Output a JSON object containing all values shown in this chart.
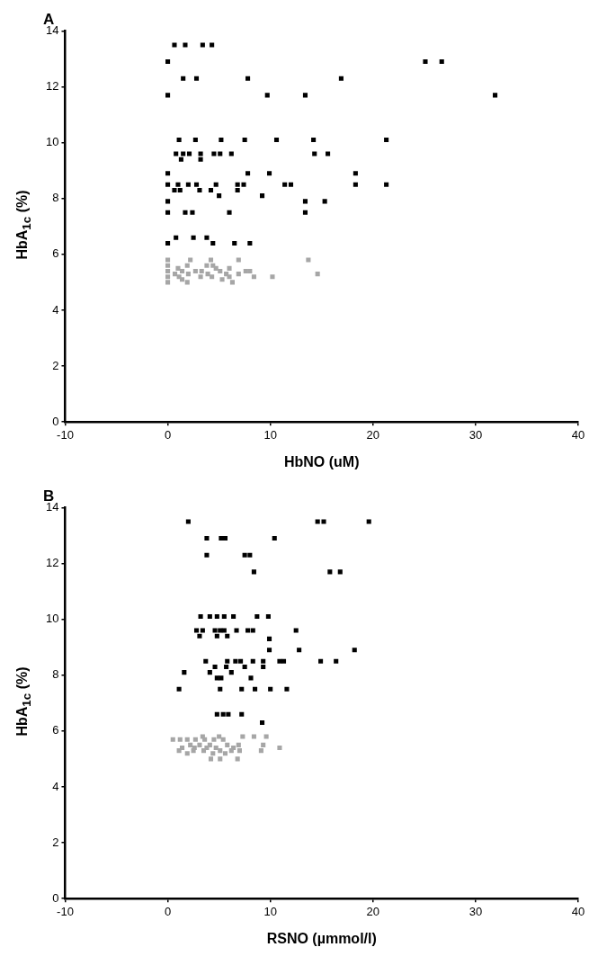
{
  "chart_data": [
    {
      "type": "scatter",
      "title": "A",
      "xlabel": "HbNO (uM)",
      "ylabel": "HbA$_{1c}$ (%)",
      "xlim": [
        -10,
        40
      ],
      "xticks": [
        -10,
        0,
        10,
        20,
        30,
        40
      ],
      "ylim": [
        0,
        14
      ],
      "yticks": [
        0,
        2,
        4,
        6,
        8,
        10,
        12,
        14
      ],
      "grid": false,
      "legend": false,
      "marker": "square",
      "series": [
        {
          "color": "#000000",
          "x": [
            0.65,
            1.7,
            3.4,
            4.3,
            0,
            25.1,
            26.7,
            1.5,
            2.8,
            7.8,
            16.9,
            0,
            9.7,
            13.4,
            31.9,
            1.1,
            2.7,
            5.2,
            7.5,
            10.6,
            14.2,
            21.3,
            0.8,
            1.5,
            2.1,
            3.2,
            4.5,
            5.1,
            6.2,
            14.3,
            15.6,
            1.3,
            3.2,
            0,
            7.8,
            9.9,
            18.3,
            0,
            1.0,
            2.0,
            2.8,
            4.7,
            6.8,
            7.4,
            11.4,
            12.0,
            18.3,
            21.3,
            0.65,
            1.2,
            3.1,
            4.2,
            6.8,
            5.0,
            9.2,
            0,
            13.4,
            15.3,
            0,
            1.7,
            2.4,
            6.0,
            13.4,
            0.8,
            2.5,
            3.8,
            0,
            4.4,
            6.5,
            8.0
          ],
          "values": [
            13.5,
            13.5,
            13.5,
            13.5,
            12.9,
            12.9,
            12.9,
            12.3,
            12.3,
            12.3,
            12.3,
            11.7,
            11.7,
            11.7,
            11.7,
            10.1,
            10.1,
            10.1,
            10.1,
            10.1,
            10.1,
            10.1,
            9.6,
            9.6,
            9.6,
            9.6,
            9.6,
            9.6,
            9.6,
            9.6,
            9.6,
            9.4,
            9.4,
            8.9,
            8.9,
            8.9,
            8.9,
            8.5,
            8.5,
            8.5,
            8.5,
            8.5,
            8.5,
            8.5,
            8.5,
            8.5,
            8.5,
            8.5,
            8.3,
            8.3,
            8.3,
            8.3,
            8.3,
            8.1,
            8.1,
            7.9,
            7.9,
            7.9,
            7.5,
            7.5,
            7.5,
            7.5,
            7.5,
            6.6,
            6.6,
            6.6,
            6.4,
            6.4,
            6.4,
            6.4
          ]
        },
        {
          "color": "#a6a6a6",
          "x": [
            0,
            2.2,
            4.2,
            6.9,
            13.7,
            0,
            1.9,
            3.8,
            4.4,
            1.0,
            4.7,
            6.0,
            0,
            1.4,
            2.7,
            3.3,
            5.1,
            7.6,
            8.0,
            0.7,
            2.0,
            3.9,
            5.7,
            6.9,
            14.6,
            0,
            1.1,
            3.2,
            4.3,
            6.0,
            8.4,
            10.2,
            1.4,
            5.3,
            0,
            1.9,
            6.3
          ],
          "values": [
            5.8,
            5.8,
            5.8,
            5.8,
            5.8,
            5.6,
            5.6,
            5.6,
            5.6,
            5.5,
            5.5,
            5.5,
            5.4,
            5.4,
            5.4,
            5.4,
            5.4,
            5.4,
            5.4,
            5.3,
            5.3,
            5.3,
            5.3,
            5.3,
            5.3,
            5.2,
            5.2,
            5.2,
            5.2,
            5.2,
            5.2,
            5.2,
            5.1,
            5.1,
            5.0,
            5.0,
            5.0
          ]
        }
      ]
    },
    {
      "type": "scatter",
      "title": "B",
      "xlabel": "RSNO (µmmol/l)",
      "ylabel": "HbA$_{1c}$ (%)",
      "xlim": [
        -10,
        40
      ],
      "xticks": [
        -10,
        0,
        10,
        20,
        30,
        40
      ],
      "ylim": [
        0,
        14
      ],
      "yticks": [
        0,
        2,
        4,
        6,
        8,
        10,
        12,
        14
      ],
      "grid": false,
      "legend": false,
      "marker": "square",
      "series": [
        {
          "color": "#000000",
          "x": [
            2.0,
            14.6,
            15.2,
            19.6,
            3.8,
            5.2,
            5.6,
            10.4,
            3.8,
            7.5,
            8.0,
            8.4,
            15.8,
            16.8,
            3.2,
            4.1,
            4.8,
            5.5,
            6.4,
            8.7,
            9.8,
            2.8,
            3.4,
            4.6,
            5.1,
            5.5,
            6.7,
            7.8,
            8.3,
            12.5,
            3.1,
            4.8,
            5.8,
            9.9,
            9.9,
            12.8,
            18.2,
            3.7,
            5.8,
            6.6,
            7.1,
            8.3,
            9.3,
            10.9,
            11.3,
            14.9,
            16.4,
            4.6,
            5.7,
            7.5,
            9.3,
            1.6,
            4.1,
            6.2,
            4.8,
            5.2,
            8.1,
            1.1,
            5.1,
            7.2,
            8.5,
            10.0,
            11.6,
            4.8,
            5.4,
            5.9,
            7.2,
            9.2
          ],
          "values": [
            13.5,
            13.5,
            13.5,
            13.5,
            12.9,
            12.9,
            12.9,
            12.9,
            12.3,
            12.3,
            12.3,
            11.7,
            11.7,
            11.7,
            10.1,
            10.1,
            10.1,
            10.1,
            10.1,
            10.1,
            10.1,
            9.6,
            9.6,
            9.6,
            9.6,
            9.6,
            9.6,
            9.6,
            9.6,
            9.6,
            9.4,
            9.4,
            9.4,
            9.3,
            8.9,
            8.9,
            8.9,
            8.5,
            8.5,
            8.5,
            8.5,
            8.5,
            8.5,
            8.5,
            8.5,
            8.5,
            8.5,
            8.3,
            8.3,
            8.3,
            8.3,
            8.1,
            8.1,
            8.1,
            7.9,
            7.9,
            7.9,
            7.5,
            7.5,
            7.5,
            7.5,
            7.5,
            7.5,
            6.6,
            6.6,
            6.6,
            6.6,
            6.3
          ]
        },
        {
          "color": "#a6a6a6",
          "x": [
            3.4,
            5.0,
            7.3,
            8.4,
            9.6,
            0.5,
            1.2,
            1.9,
            2.7,
            3.6,
            4.5,
            5.4,
            2.2,
            3.1,
            4.1,
            5.8,
            6.9,
            9.3,
            1.4,
            2.6,
            3.8,
            4.7,
            6.4,
            10.9,
            1.1,
            2.5,
            3.5,
            5.1,
            6.2,
            7.0,
            9.1,
            1.9,
            4.4,
            5.6,
            4.2,
            5.1,
            6.8
          ],
          "values": [
            5.8,
            5.8,
            5.8,
            5.8,
            5.8,
            5.7,
            5.7,
            5.7,
            5.7,
            5.7,
            5.7,
            5.7,
            5.5,
            5.5,
            5.5,
            5.5,
            5.5,
            5.5,
            5.4,
            5.4,
            5.4,
            5.4,
            5.4,
            5.4,
            5.3,
            5.3,
            5.3,
            5.3,
            5.3,
            5.3,
            5.3,
            5.2,
            5.2,
            5.2,
            5.0,
            5.0,
            5.0
          ]
        }
      ]
    }
  ]
}
